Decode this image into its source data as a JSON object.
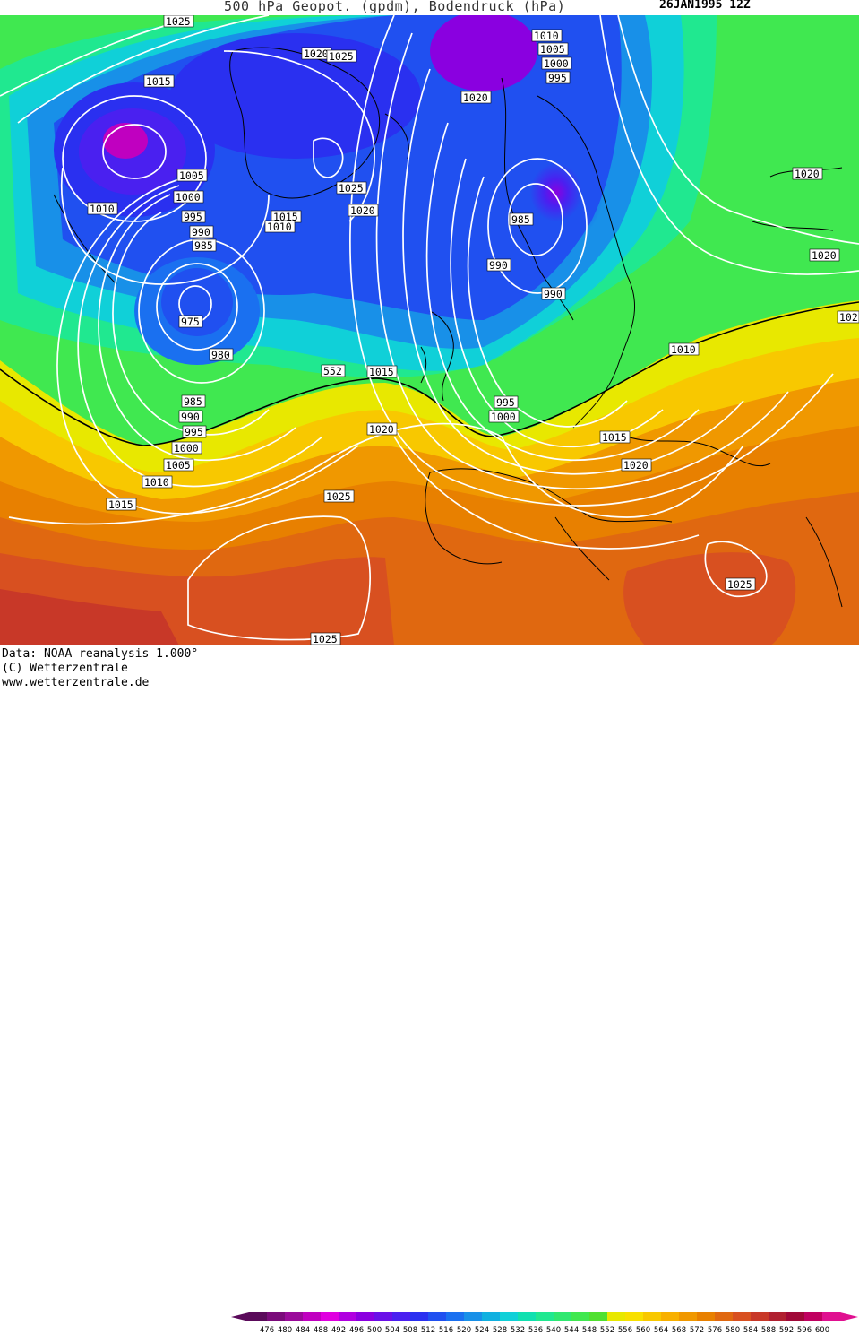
{
  "title": {
    "left": "500 hPa Geopot. (gpdm), Bodendruck (hPa)",
    "right": "26JAN1995 12Z"
  },
  "footer": {
    "line1": "Data: NOAA reanalysis 1.000°",
    "line2": "(C) Wetterzentrale",
    "line3": "www.wetterzentrale.de"
  },
  "legend": {
    "ticks": [
      "476",
      "480",
      "484",
      "488",
      "492",
      "496",
      "500",
      "504",
      "508",
      "512",
      "516",
      "520",
      "524",
      "528",
      "532",
      "536",
      "540",
      "544",
      "548",
      "552",
      "556",
      "560",
      "564",
      "568",
      "572",
      "576",
      "580",
      "584",
      "588",
      "592",
      "596",
      "600"
    ],
    "colors": [
      "#5a0a5a",
      "#7a0a7a",
      "#9a0a9a",
      "#c000c0",
      "#e000e0",
      "#b000e0",
      "#8a00e0",
      "#6a10e8",
      "#4a20f0",
      "#2a30f0",
      "#2050f0",
      "#1a70f0",
      "#1890e8",
      "#10b0e0",
      "#10d0d8",
      "#10e0b0",
      "#20e890",
      "#30e870",
      "#40e850",
      "#50e030",
      "#e8e800",
      "#f8e000",
      "#f8c800",
      "#f8b000",
      "#f09800",
      "#e88000",
      "#e06810",
      "#d85020",
      "#c83828",
      "#b02030",
      "#a00838",
      "#c00060",
      "#e01090"
    ]
  },
  "pressure_labels": [
    "1025",
    "1015",
    "1020",
    "1025",
    "1010",
    "1005",
    "1000",
    "995",
    "1020",
    "1005",
    "1010",
    "1000",
    "995",
    "990",
    "985",
    "975",
    "980",
    "1025",
    "1015",
    "1010",
    "1020",
    "985",
    "990",
    "990",
    "1020",
    "1020",
    "102",
    "1010",
    "552",
    "1015",
    "1020",
    "995",
    "1000",
    "985",
    "990",
    "995",
    "1000",
    "1005",
    "1010",
    "1015",
    "1025",
    "1015",
    "1020",
    "1025",
    "1025"
  ],
  "colors": {
    "contour": "#ffffff",
    "coast": "#000000",
    "c552": "#000000"
  }
}
